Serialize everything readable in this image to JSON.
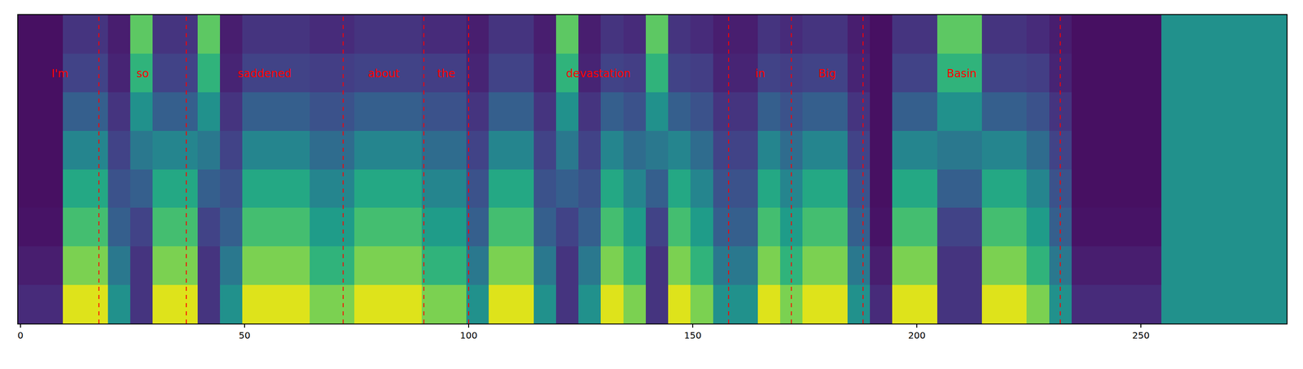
{
  "chart_data": {
    "type": "heatmap",
    "xlim": [
      -0.5,
      282.5
    ],
    "ylim": [
      -0.5,
      7.5
    ],
    "xticks": [
      0,
      50,
      100,
      150,
      200,
      250
    ],
    "tick_labels": "x",
    "zlim": [
      0,
      1
    ],
    "x": [
      2,
      7,
      12,
      17,
      22,
      27,
      32,
      37,
      42,
      47,
      52,
      57,
      62,
      67,
      72,
      77,
      82,
      87,
      92,
      97,
      102,
      107,
      112,
      117,
      122,
      127,
      132,
      137,
      142,
      147,
      152,
      157,
      162,
      167,
      172,
      177,
      182,
      187,
      192,
      197,
      202,
      207,
      212,
      217,
      222,
      227,
      232,
      237,
      242,
      247,
      252,
      257,
      262,
      267,
      272,
      277,
      282
    ],
    "y": [
      0,
      1,
      2,
      3,
      4,
      5,
      6,
      7
    ],
    "z": [
      [
        0.12,
        0.12,
        0.95,
        0.95,
        0.5,
        0.15,
        0.95,
        0.95,
        0.15,
        0.5,
        0.95,
        0.95,
        0.95,
        0.8,
        0.8,
        0.95,
        0.95,
        0.95,
        0.8,
        0.8,
        0.5,
        0.95,
        0.95,
        0.5,
        0.15,
        0.5,
        0.95,
        0.8,
        0.15,
        0.95,
        0.8,
        0.5,
        0.5,
        0.95,
        0.8,
        0.95,
        0.95,
        0.5,
        0.12,
        0.95,
        0.95,
        0.15,
        0.15,
        0.95,
        0.95,
        0.8,
        0.5,
        0.12,
        0.12,
        0.12,
        0.12,
        0.5,
        0.5,
        0.5,
        0.5,
        0.5,
        0.5
      ],
      [
        0.08,
        0.08,
        0.8,
        0.8,
        0.4,
        0.15,
        0.8,
        0.8,
        0.15,
        0.4,
        0.8,
        0.8,
        0.8,
        0.65,
        0.65,
        0.8,
        0.8,
        0.8,
        0.65,
        0.65,
        0.4,
        0.8,
        0.8,
        0.4,
        0.15,
        0.4,
        0.8,
        0.65,
        0.15,
        0.8,
        0.65,
        0.4,
        0.4,
        0.8,
        0.65,
        0.8,
        0.8,
        0.4,
        0.08,
        0.8,
        0.8,
        0.15,
        0.15,
        0.8,
        0.8,
        0.65,
        0.4,
        0.08,
        0.08,
        0.08,
        0.08,
        0.5,
        0.5,
        0.5,
        0.5,
        0.5,
        0.5
      ],
      [
        0.05,
        0.05,
        0.7,
        0.7,
        0.3,
        0.2,
        0.7,
        0.7,
        0.2,
        0.3,
        0.7,
        0.7,
        0.7,
        0.55,
        0.55,
        0.7,
        0.7,
        0.7,
        0.55,
        0.55,
        0.3,
        0.7,
        0.7,
        0.3,
        0.2,
        0.3,
        0.7,
        0.55,
        0.2,
        0.7,
        0.55,
        0.3,
        0.3,
        0.7,
        0.55,
        0.7,
        0.7,
        0.3,
        0.05,
        0.7,
        0.7,
        0.2,
        0.2,
        0.7,
        0.7,
        0.55,
        0.3,
        0.05,
        0.05,
        0.05,
        0.05,
        0.5,
        0.5,
        0.5,
        0.5,
        0.5,
        0.5
      ],
      [
        0.04,
        0.04,
        0.6,
        0.6,
        0.25,
        0.3,
        0.6,
        0.6,
        0.3,
        0.25,
        0.6,
        0.6,
        0.6,
        0.45,
        0.45,
        0.6,
        0.6,
        0.6,
        0.45,
        0.45,
        0.25,
        0.6,
        0.6,
        0.25,
        0.3,
        0.25,
        0.6,
        0.45,
        0.3,
        0.6,
        0.45,
        0.25,
        0.25,
        0.6,
        0.45,
        0.6,
        0.6,
        0.25,
        0.04,
        0.6,
        0.6,
        0.3,
        0.3,
        0.6,
        0.6,
        0.45,
        0.25,
        0.04,
        0.04,
        0.04,
        0.04,
        0.5,
        0.5,
        0.5,
        0.5,
        0.5,
        0.5
      ],
      [
        0.04,
        0.04,
        0.45,
        0.45,
        0.2,
        0.4,
        0.45,
        0.45,
        0.4,
        0.2,
        0.45,
        0.45,
        0.45,
        0.35,
        0.35,
        0.45,
        0.45,
        0.45,
        0.35,
        0.35,
        0.2,
        0.45,
        0.45,
        0.2,
        0.4,
        0.2,
        0.45,
        0.35,
        0.4,
        0.45,
        0.35,
        0.2,
        0.2,
        0.45,
        0.35,
        0.45,
        0.45,
        0.2,
        0.04,
        0.45,
        0.45,
        0.4,
        0.4,
        0.45,
        0.45,
        0.35,
        0.2,
        0.04,
        0.04,
        0.04,
        0.04,
        0.5,
        0.5,
        0.5,
        0.5,
        0.5,
        0.5
      ],
      [
        0.04,
        0.04,
        0.3,
        0.3,
        0.15,
        0.5,
        0.3,
        0.3,
        0.5,
        0.15,
        0.3,
        0.3,
        0.3,
        0.25,
        0.25,
        0.3,
        0.3,
        0.3,
        0.25,
        0.25,
        0.15,
        0.3,
        0.3,
        0.15,
        0.5,
        0.15,
        0.3,
        0.25,
        0.5,
        0.3,
        0.25,
        0.15,
        0.15,
        0.3,
        0.25,
        0.3,
        0.3,
        0.15,
        0.04,
        0.3,
        0.3,
        0.5,
        0.5,
        0.3,
        0.3,
        0.25,
        0.15,
        0.04,
        0.04,
        0.04,
        0.04,
        0.5,
        0.5,
        0.5,
        0.5,
        0.5,
        0.5
      ],
      [
        0.04,
        0.04,
        0.2,
        0.2,
        0.1,
        0.65,
        0.2,
        0.2,
        0.65,
        0.1,
        0.2,
        0.2,
        0.2,
        0.18,
        0.18,
        0.2,
        0.2,
        0.2,
        0.18,
        0.18,
        0.1,
        0.2,
        0.2,
        0.1,
        0.65,
        0.1,
        0.2,
        0.18,
        0.65,
        0.2,
        0.18,
        0.1,
        0.1,
        0.2,
        0.18,
        0.2,
        0.2,
        0.1,
        0.04,
        0.2,
        0.2,
        0.65,
        0.65,
        0.2,
        0.2,
        0.18,
        0.1,
        0.04,
        0.04,
        0.04,
        0.04,
        0.5,
        0.5,
        0.5,
        0.5,
        0.5,
        0.5
      ],
      [
        0.04,
        0.04,
        0.15,
        0.15,
        0.08,
        0.75,
        0.15,
        0.15,
        0.75,
        0.08,
        0.15,
        0.15,
        0.15,
        0.12,
        0.12,
        0.15,
        0.15,
        0.15,
        0.12,
        0.12,
        0.08,
        0.15,
        0.15,
        0.08,
        0.75,
        0.08,
        0.15,
        0.12,
        0.75,
        0.15,
        0.12,
        0.08,
        0.08,
        0.15,
        0.12,
        0.15,
        0.15,
        0.08,
        0.04,
        0.15,
        0.15,
        0.75,
        0.75,
        0.15,
        0.15,
        0.12,
        0.08,
        0.04,
        0.04,
        0.04,
        0.04,
        0.5,
        0.5,
        0.5,
        0.5,
        0.5,
        0.5
      ]
    ],
    "words": [
      {
        "text": "I'm",
        "start": 0,
        "end": 17.5
      },
      {
        "text": "so",
        "start": 17.5,
        "end": 37
      },
      {
        "text": "saddened",
        "start": 37,
        "end": 72
      },
      {
        "text": "about",
        "start": 72,
        "end": 90
      },
      {
        "text": "the",
        "start": 90,
        "end": 100
      },
      {
        "text": "devastation",
        "start": 100,
        "end": 158
      },
      {
        "text": "in",
        "start": 158,
        "end": 172
      },
      {
        "text": "Big",
        "start": 172,
        "end": 188
      },
      {
        "text": "Basin",
        "start": 188,
        "end": 232
      }
    ]
  }
}
